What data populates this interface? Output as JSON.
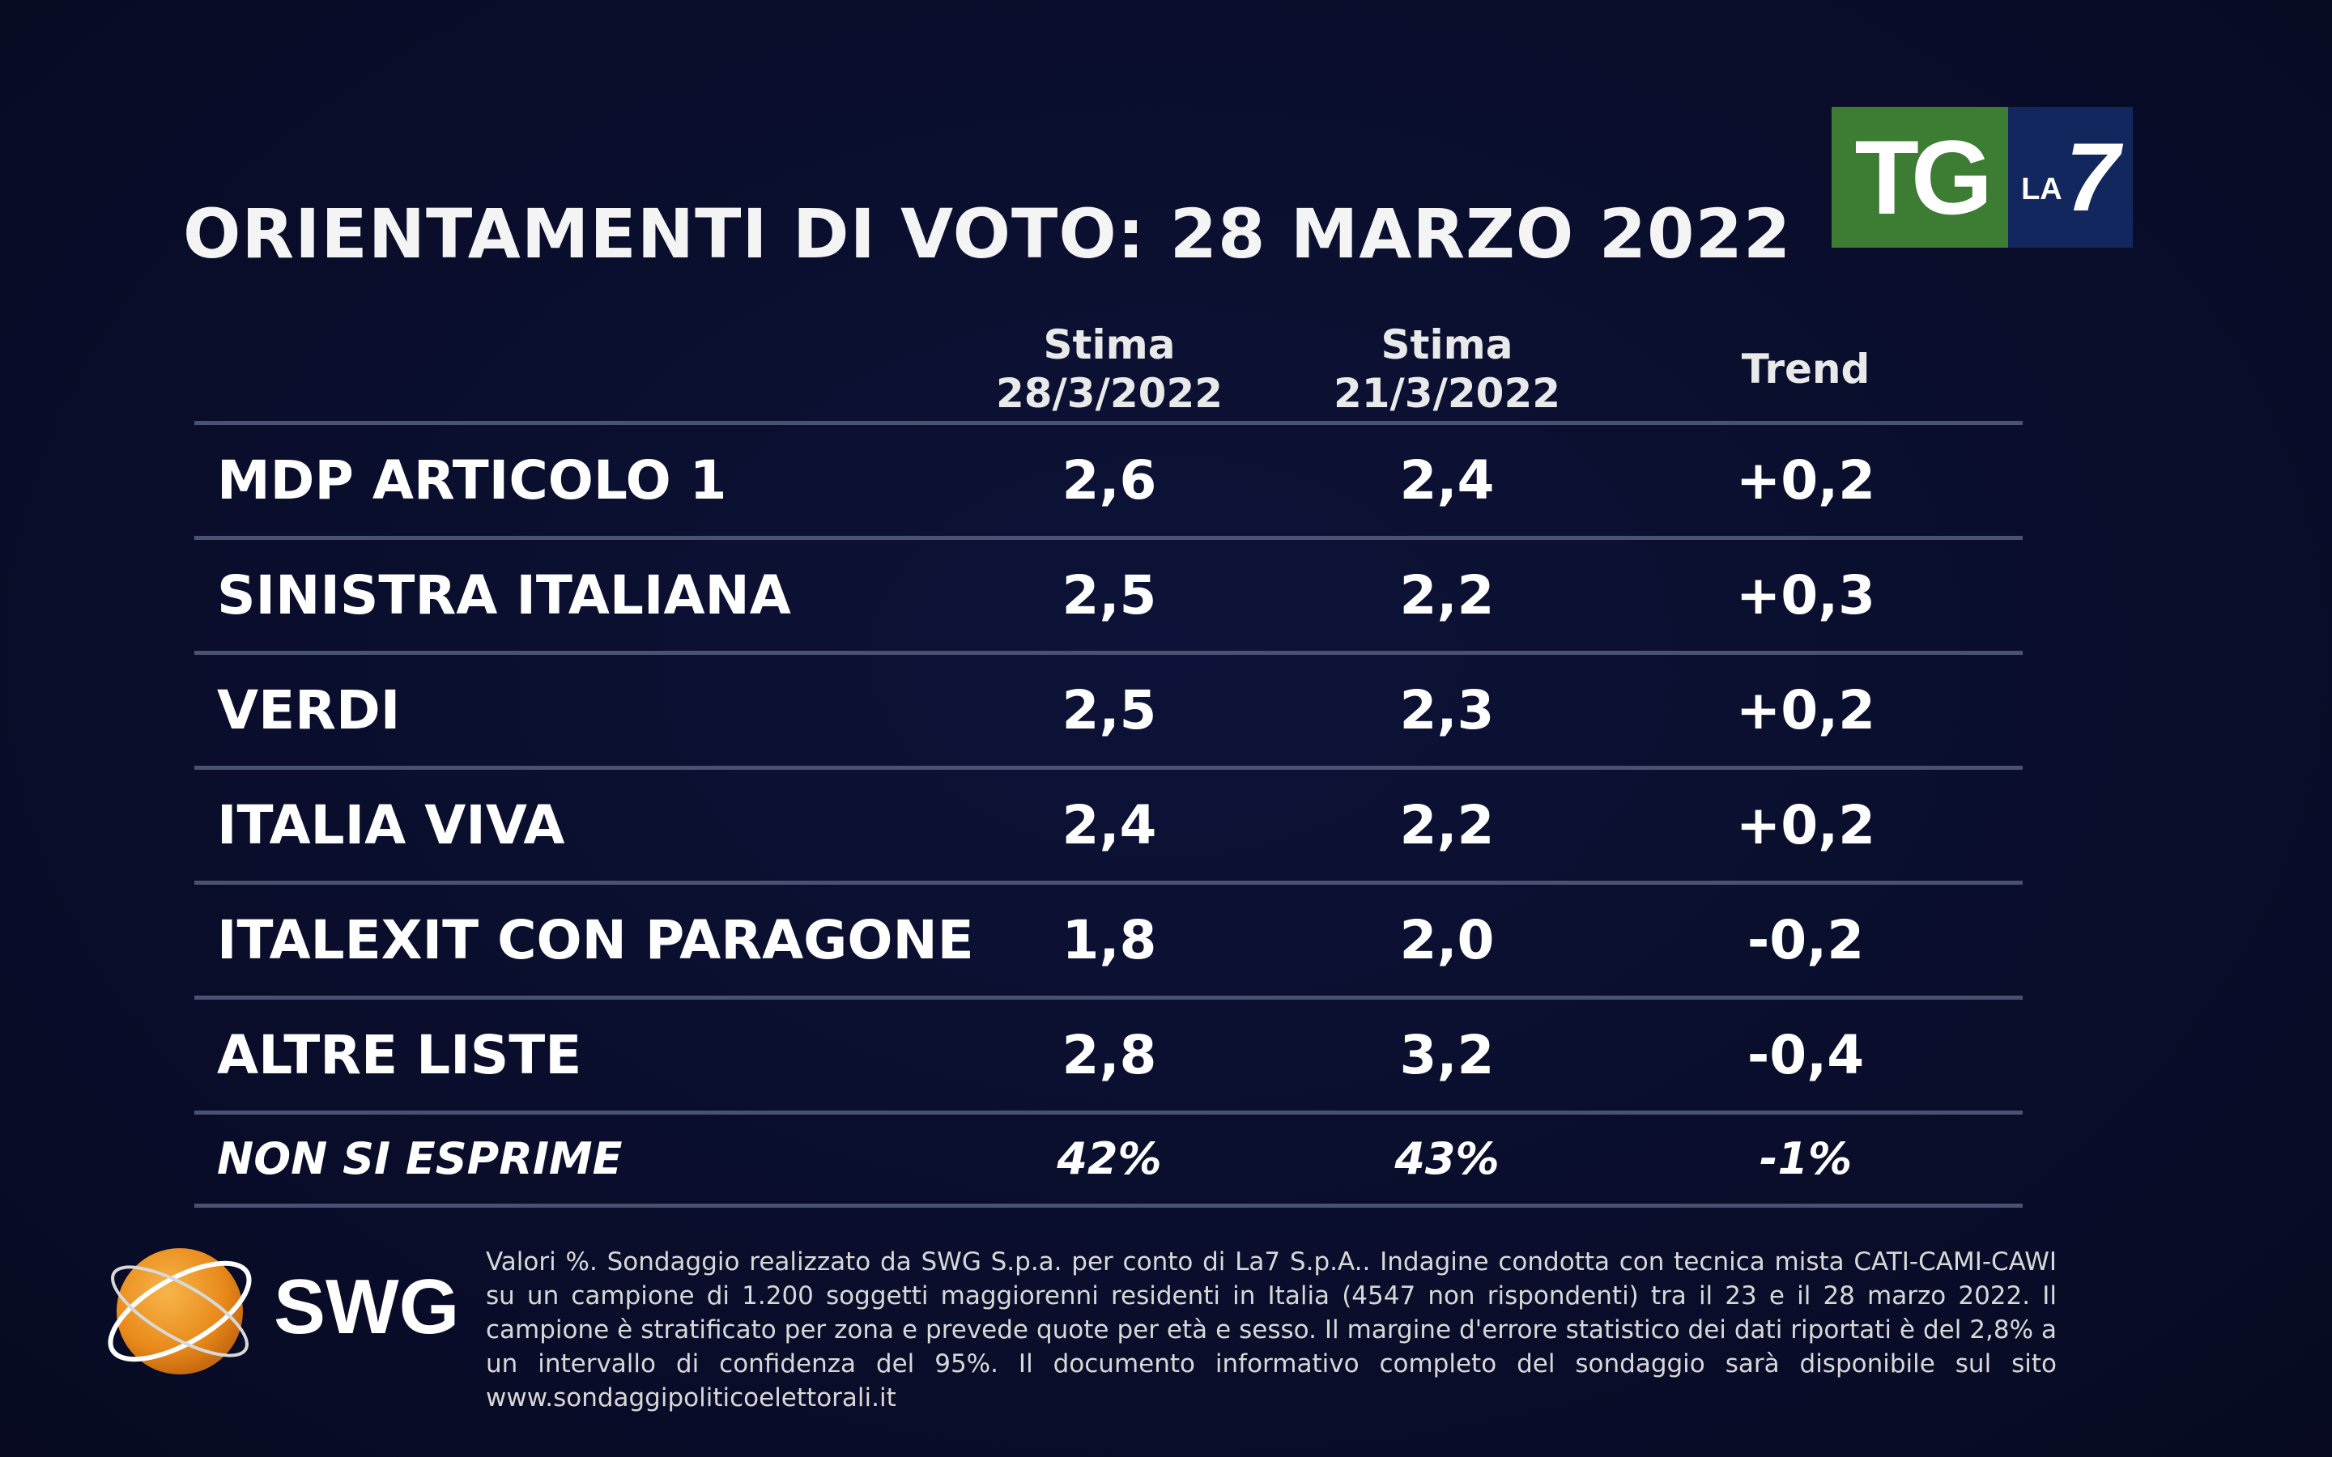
{
  "title": "ORIENTAMENTI DI VOTO: 28 MARZO 2022",
  "brand": {
    "tg": "TG",
    "la": "LA",
    "seven": "7",
    "swg": "SWG"
  },
  "chart_data": {
    "type": "table",
    "title": "ORIENTAMENTI DI VOTO: 28 MARZO 2022",
    "columns": [
      {
        "line1": "Stima",
        "line2": "28/3/2022"
      },
      {
        "line1": "Stima",
        "line2": "21/3/2022"
      },
      {
        "line1": "Trend",
        "line2": ""
      }
    ],
    "rows": [
      {
        "name": "MDP ARTICOLO 1",
        "current": "2,6",
        "previous": "2,4",
        "trend": "+0,2"
      },
      {
        "name": "SINISTRA ITALIANA",
        "current": "2,5",
        "previous": "2,2",
        "trend": "+0,3"
      },
      {
        "name": "VERDI",
        "current": "2,5",
        "previous": "2,3",
        "trend": "+0,2"
      },
      {
        "name": "ITALIA VIVA",
        "current": "2,4",
        "previous": "2,2",
        "trend": "+0,2"
      },
      {
        "name": "ITALEXIT CON PARAGONE",
        "current": "1,8",
        "previous": "2,0",
        "trend": "-0,2"
      },
      {
        "name": "ALTRE LISTE",
        "current": "2,8",
        "previous": "3,2",
        "trend": "-0,4"
      }
    ],
    "non_si_esprime": {
      "name": "NON SI ESPRIME",
      "current": "42%",
      "previous": "43%",
      "trend": "-1%"
    }
  },
  "footnote": "Valori %. Sondaggio realizzato da SWG S.p.a. per conto di La7 S.p.A.. Indagine condotta con tecnica mista CATI-CAMI-CAWI su un campione di 1.200 soggetti maggiorenni residenti in Italia (4547 non rispondenti) tra il 23 e il 28 marzo 2022. Il campione è stratificato per zona e prevede quote per età e sesso. Il margine d'errore statistico dei dati riportati è del 2,8% a un intervallo di confidenza del 95%. Il documento informativo completo del sondaggio sarà disponibile sul sito www.sondaggipoliticoelettorali.it"
}
